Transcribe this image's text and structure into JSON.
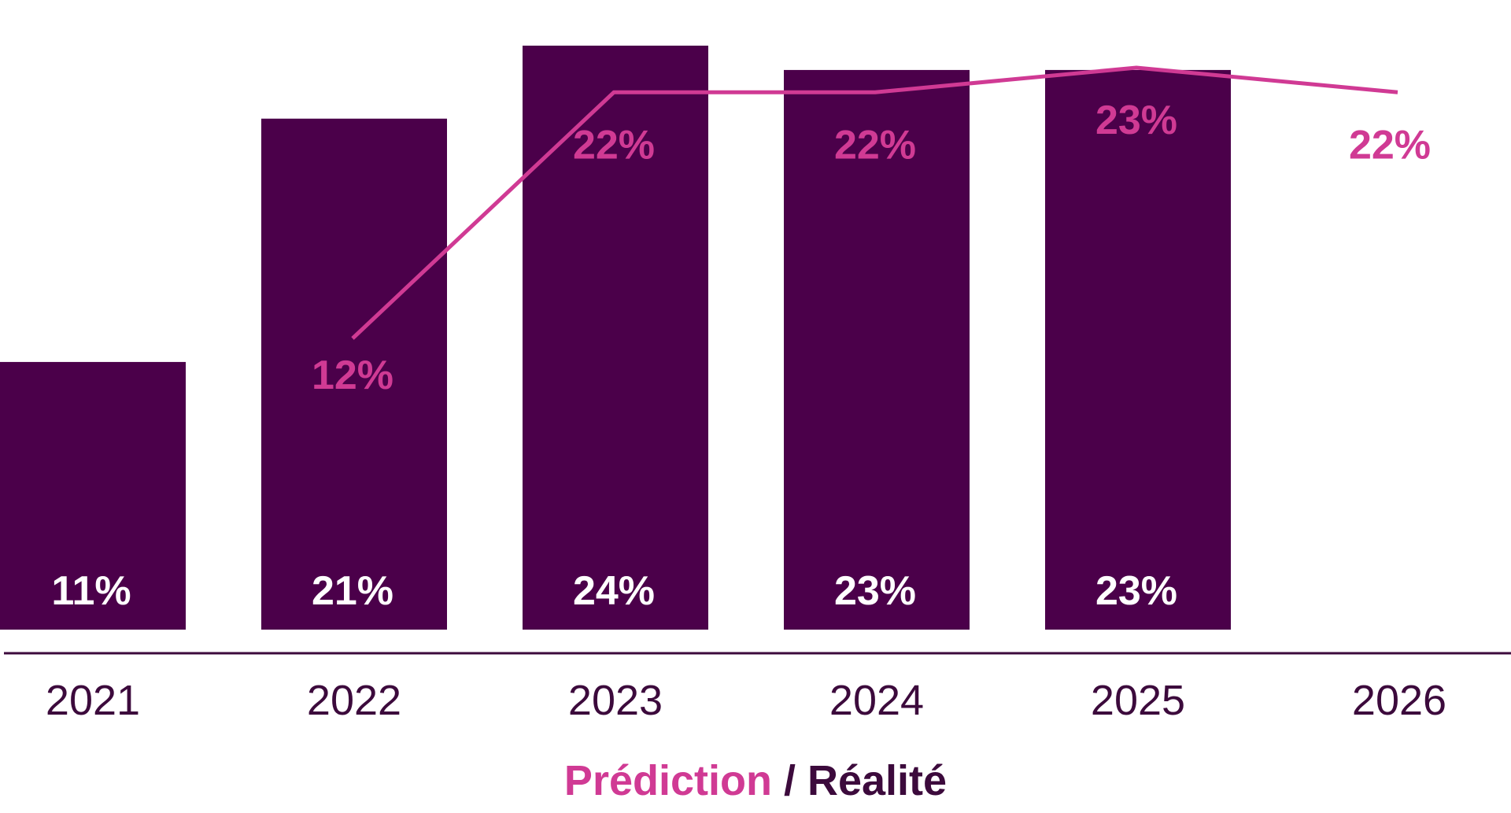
{
  "chart_data": {
    "type": "bar",
    "categories": [
      "2021",
      "2022",
      "2023",
      "2024",
      "2025",
      "2026"
    ],
    "series": [
      {
        "name": "Réalité",
        "type": "bar",
        "color": "#4b004a",
        "values": [
          11,
          21,
          24,
          23,
          23,
          null
        ],
        "labels": [
          "11%",
          "21%",
          "24%",
          "23%",
          "23%",
          null
        ]
      },
      {
        "name": "Prédiction",
        "type": "line",
        "color": "#d03a94",
        "values": [
          null,
          12,
          22,
          22,
          23,
          22
        ],
        "labels": [
          null,
          "12%",
          "22%",
          "22%",
          "23%",
          "22%"
        ]
      }
    ],
    "ylim": [
      0,
      24
    ],
    "grid": false,
    "legend": {
      "position": "bottom-center",
      "prediction": "Prédiction",
      "separator": " / ",
      "reality": "Réalité"
    }
  }
}
